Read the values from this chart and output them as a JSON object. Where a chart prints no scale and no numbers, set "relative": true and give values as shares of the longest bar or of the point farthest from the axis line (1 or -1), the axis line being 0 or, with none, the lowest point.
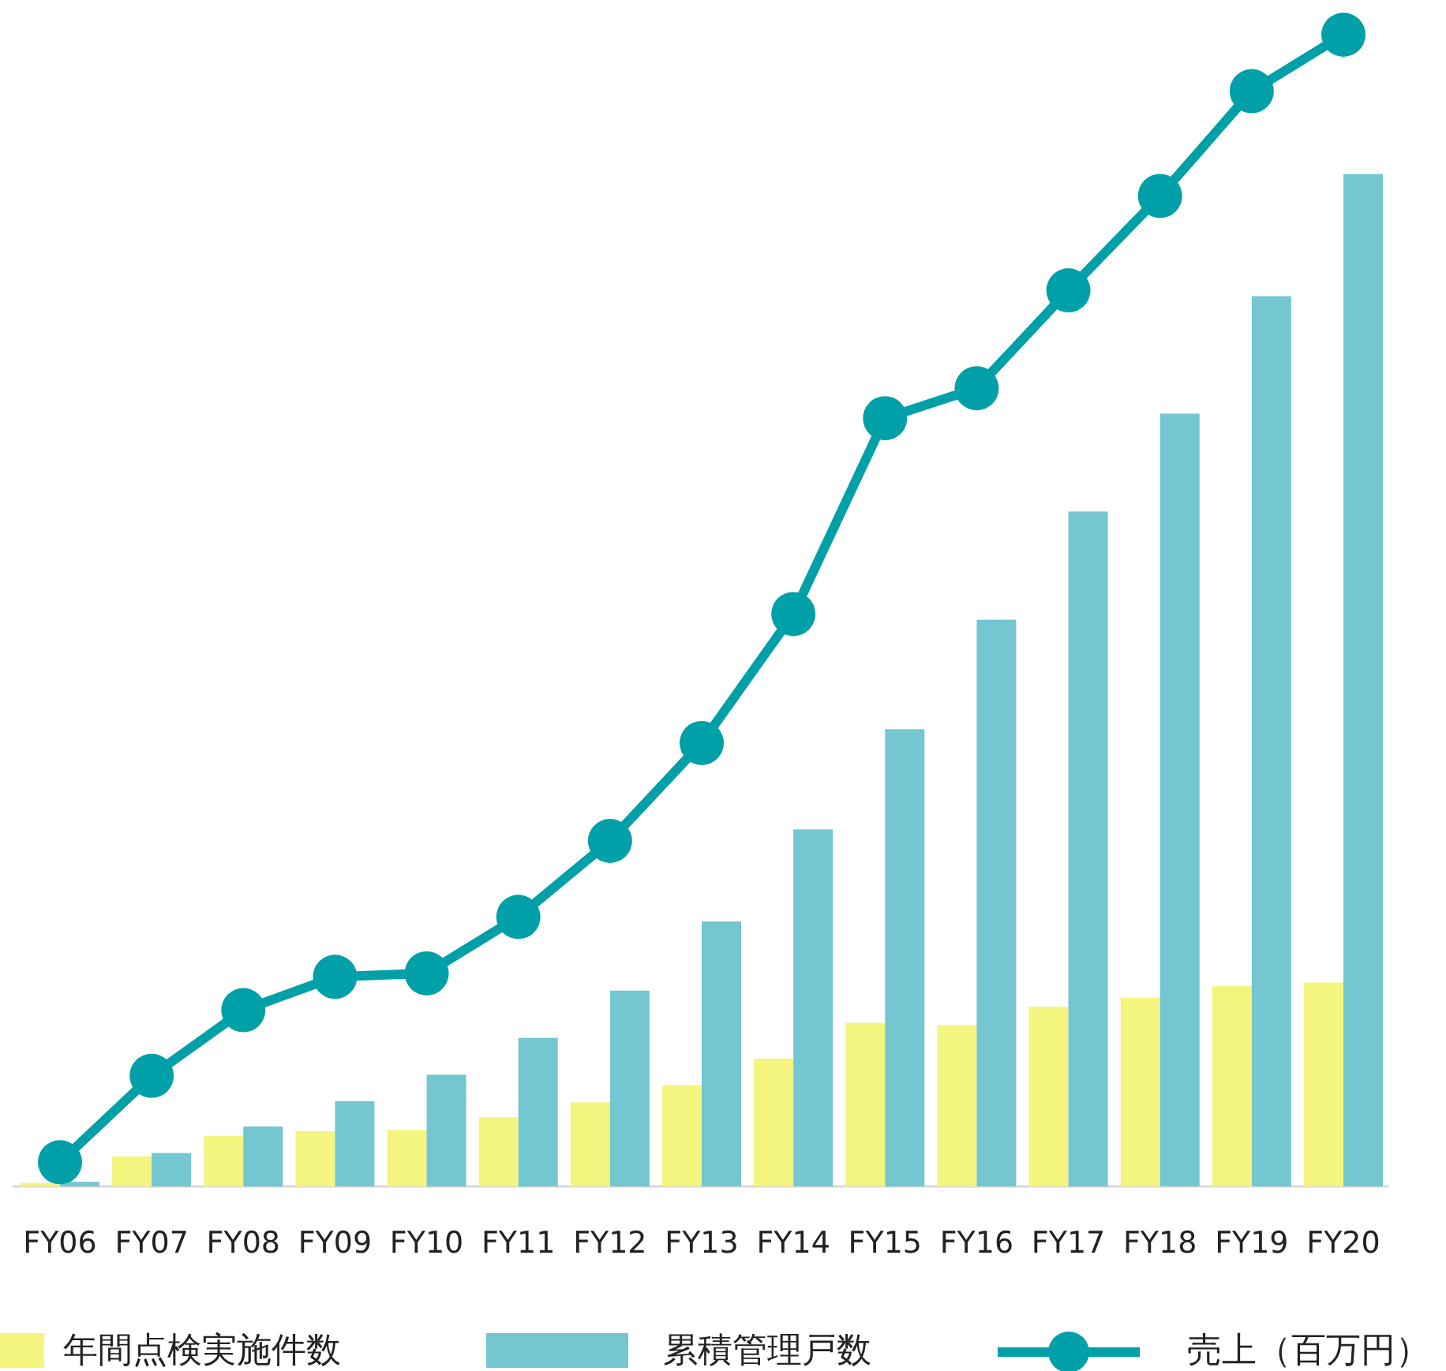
{
  "chart_data": {
    "type": "bar",
    "relative": true,
    "legend": "bottom",
    "categories": [
      "FY06",
      "FY07",
      "FY08",
      "FY09",
      "FY10",
      "FY11",
      "FY12",
      "FY13",
      "FY14",
      "FY15",
      "FY16",
      "FY17",
      "FY18",
      "FY19",
      "FY20"
    ],
    "series": [
      {
        "name": "年間点検実施件数",
        "color": "#f3f57e",
        "values": [
          0.003,
          0.026,
          0.044,
          0.048,
          0.049,
          0.06,
          0.073,
          0.088,
          0.111,
          0.142,
          0.14,
          0.156,
          0.164,
          0.174,
          0.177
        ]
      },
      {
        "name": "累積管理戸数",
        "color": "#74c6d1",
        "values": [
          0.004,
          0.029,
          0.052,
          0.074,
          0.097,
          0.129,
          0.17,
          0.23,
          0.31,
          0.397,
          0.492,
          0.586,
          0.671,
          0.773,
          0.879
        ]
      },
      {
        "name": "売上（百万円）",
        "type": "line",
        "color": "#00a0a8",
        "marker": "circle",
        "values": [
          0.021,
          0.096,
          0.153,
          0.182,
          0.185,
          0.234,
          0.3,
          0.385,
          0.497,
          0.667,
          0.693,
          0.778,
          0.86,
          0.951,
          1.0
        ]
      }
    ]
  }
}
